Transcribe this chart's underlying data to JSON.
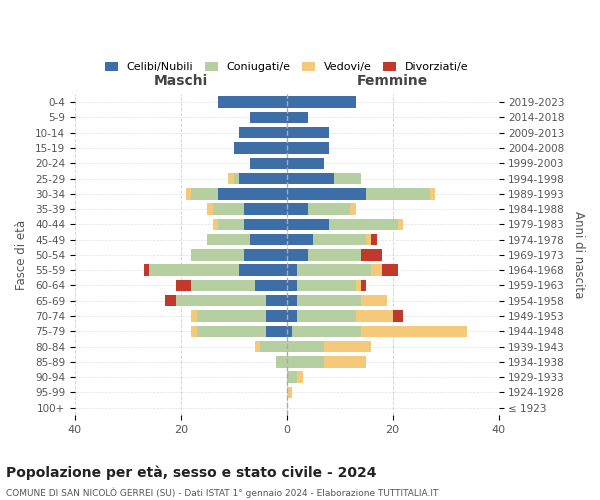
{
  "age_groups": [
    "100+",
    "95-99",
    "90-94",
    "85-89",
    "80-84",
    "75-79",
    "70-74",
    "65-69",
    "60-64",
    "55-59",
    "50-54",
    "45-49",
    "40-44",
    "35-39",
    "30-34",
    "25-29",
    "20-24",
    "15-19",
    "10-14",
    "5-9",
    "0-4"
  ],
  "birth_years": [
    "≤ 1923",
    "1924-1928",
    "1929-1933",
    "1934-1938",
    "1939-1943",
    "1944-1948",
    "1949-1953",
    "1954-1958",
    "1959-1963",
    "1964-1968",
    "1969-1973",
    "1974-1978",
    "1979-1983",
    "1984-1988",
    "1989-1993",
    "1994-1998",
    "1999-2003",
    "2004-2008",
    "2009-2013",
    "2014-2018",
    "2019-2023"
  ],
  "colors": {
    "celibi": "#3d6ea8",
    "coniugati": "#b5cfa0",
    "vedovi": "#f5c97a",
    "divorziati": "#c0392b"
  },
  "maschi": {
    "celibi": [
      0,
      0,
      0,
      0,
      0,
      4,
      4,
      4,
      6,
      9,
      8,
      7,
      8,
      8,
      13,
      9,
      7,
      10,
      9,
      7,
      13
    ],
    "coniugati": [
      0,
      0,
      0,
      2,
      5,
      13,
      13,
      17,
      12,
      17,
      10,
      8,
      5,
      6,
      5,
      1,
      0,
      0,
      0,
      0,
      0
    ],
    "vedovi": [
      0,
      0,
      0,
      0,
      1,
      1,
      1,
      0,
      0,
      0,
      0,
      0,
      1,
      1,
      1,
      1,
      0,
      0,
      0,
      0,
      0
    ],
    "divorziati": [
      0,
      0,
      0,
      0,
      0,
      0,
      0,
      2,
      3,
      1,
      0,
      0,
      0,
      0,
      0,
      0,
      0,
      0,
      0,
      0,
      0
    ]
  },
  "femmine": {
    "celibi": [
      0,
      0,
      0,
      0,
      0,
      1,
      2,
      2,
      2,
      2,
      4,
      5,
      8,
      4,
      15,
      9,
      7,
      8,
      8,
      4,
      13
    ],
    "coniugati": [
      0,
      0,
      2,
      7,
      7,
      13,
      11,
      12,
      11,
      14,
      10,
      10,
      13,
      8,
      12,
      5,
      0,
      0,
      0,
      0,
      0
    ],
    "vedovi": [
      0,
      1,
      1,
      8,
      9,
      20,
      7,
      5,
      1,
      2,
      0,
      1,
      1,
      1,
      1,
      0,
      0,
      0,
      0,
      0,
      0
    ],
    "divorziati": [
      0,
      0,
      0,
      0,
      0,
      0,
      2,
      0,
      1,
      3,
      4,
      1,
      0,
      0,
      0,
      0,
      0,
      0,
      0,
      0,
      0
    ]
  },
  "xlim": 40,
  "title": "Popolazione per età, sesso e stato civile - 2024",
  "subtitle": "COMUNE DI SAN NICOLÒ GERREI (SU) - Dati ISTAT 1° gennaio 2024 - Elaborazione TUTTITALIA.IT",
  "legend_labels": [
    "Celibi/Nubili",
    "Coniugati/e",
    "Vedovi/e",
    "Divorziati/e"
  ],
  "xlabel_left": "Maschi",
  "xlabel_right": "Femmine",
  "ylabel_left": "Fasce di età",
  "ylabel_right": "Anni di nascita",
  "bg_color": "#ffffff",
  "grid_color": "#cccccc",
  "header_color": "#444444"
}
